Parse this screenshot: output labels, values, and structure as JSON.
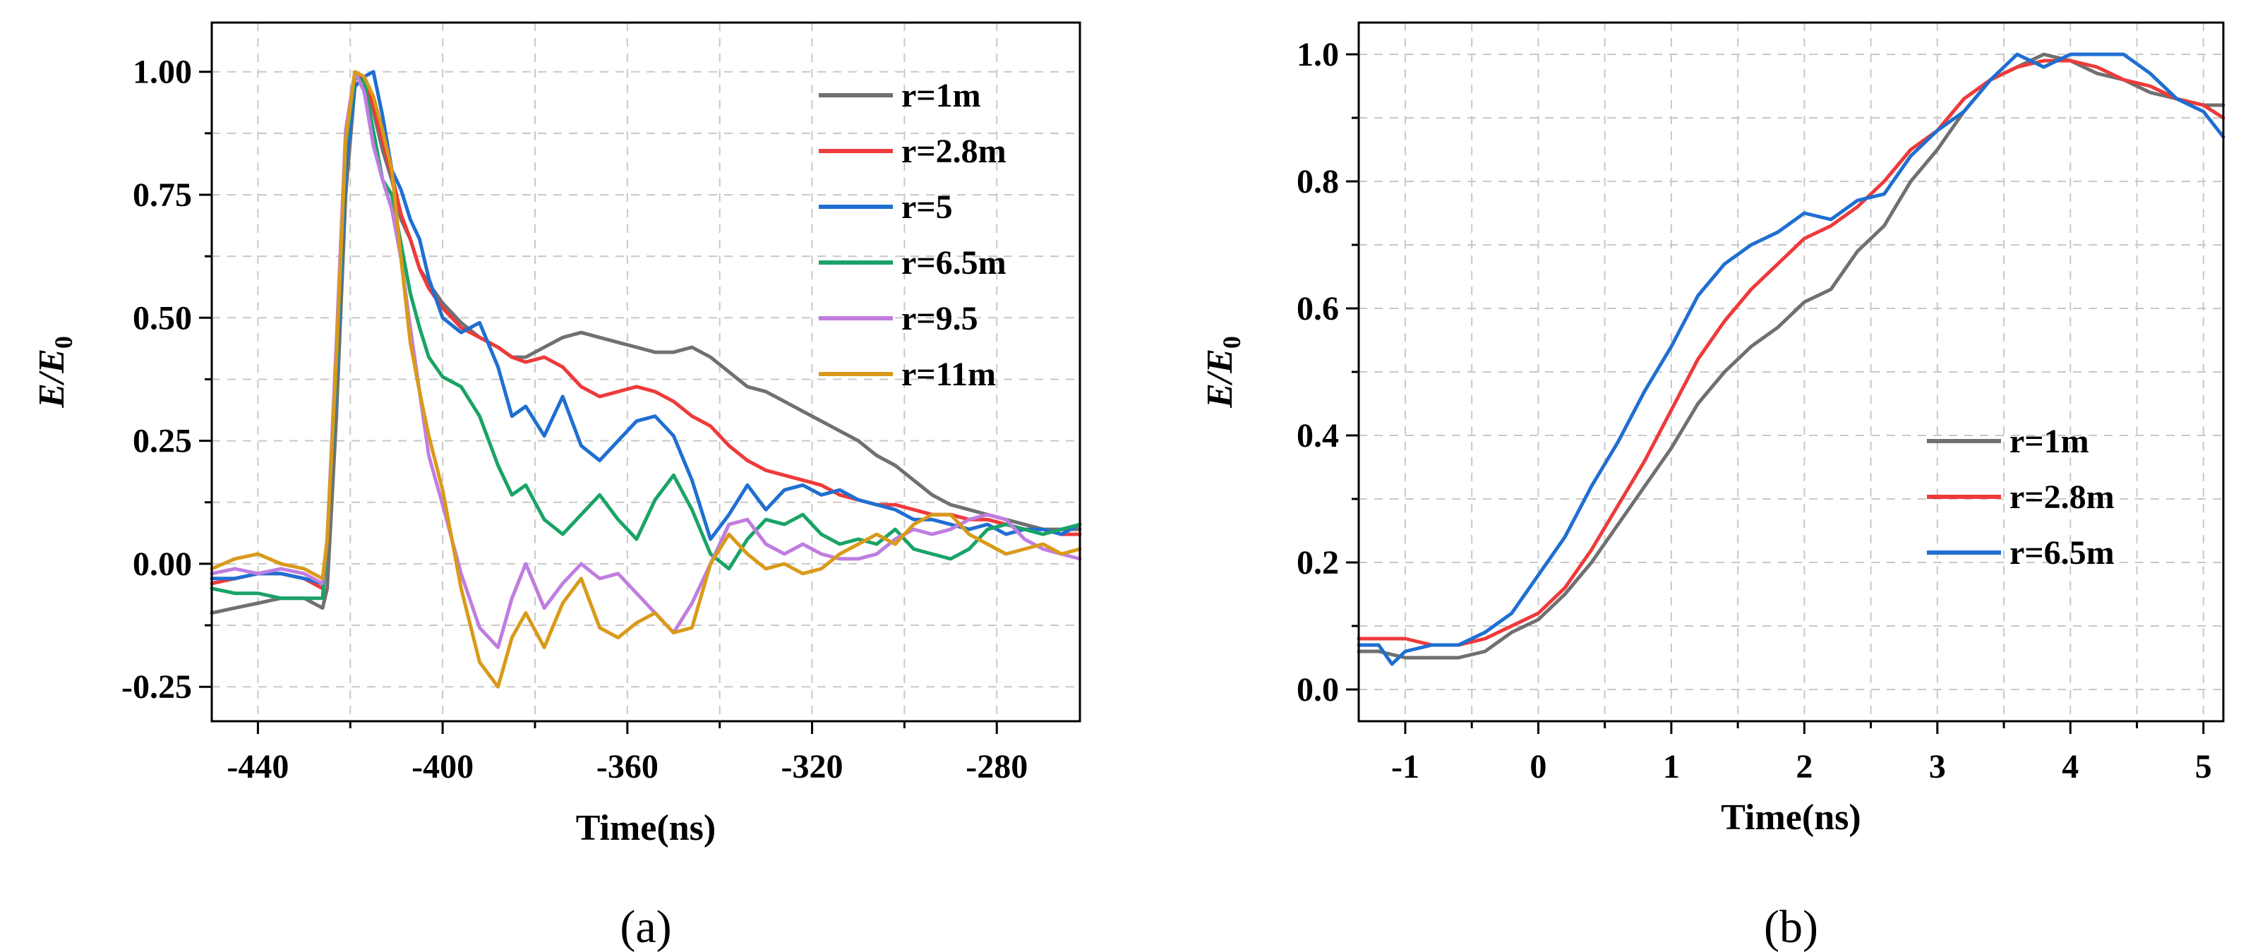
{
  "chart_data": [
    {
      "type": "line",
      "title": "",
      "panel_label": "(a)",
      "xlabel": "Time(ns)",
      "ylabel": "E/E",
      "ylabel_sub": "0",
      "xlim": [
        -450,
        -262
      ],
      "ylim": [
        -0.32,
        1.1
      ],
      "xticks": [
        -440,
        -400,
        -360,
        -320,
        -280
      ],
      "xtick_labels": [
        "-440",
        "-400",
        "-360",
        "-320",
        "-280"
      ],
      "yticks": [
        -0.25,
        0,
        0.25,
        0.5,
        0.75,
        1.0
      ],
      "ytick_labels": [
        "-0.25",
        "0.00",
        "0.25",
        "0.50",
        "0.75",
        "1.00"
      ],
      "legend_position": "top-right",
      "series": [
        {
          "name": "r=1m",
          "color": "#707070",
          "x": [
            -450,
            -445,
            -440,
            -435,
            -430,
            -426,
            -425,
            -423,
            -421,
            -419,
            -417,
            -415,
            -413,
            -411,
            -409,
            -407,
            -405,
            -403,
            -400,
            -396,
            -392,
            -388,
            -385,
            -382,
            -378,
            -374,
            -370,
            -366,
            -362,
            -358,
            -354,
            -350,
            -346,
            -342,
            -338,
            -334,
            -330,
            -326,
            -322,
            -318,
            -314,
            -310,
            -306,
            -302,
            -298,
            -294,
            -290,
            -286,
            -282,
            -278,
            -274,
            -270,
            -266,
            -262
          ],
          "y": [
            -0.1,
            -0.09,
            -0.08,
            -0.07,
            -0.07,
            -0.09,
            -0.05,
            0.3,
            0.75,
            0.97,
            0.99,
            0.92,
            0.84,
            0.78,
            0.7,
            0.66,
            0.6,
            0.57,
            0.53,
            0.49,
            0.46,
            0.44,
            0.42,
            0.42,
            0.44,
            0.46,
            0.47,
            0.46,
            0.45,
            0.44,
            0.43,
            0.43,
            0.44,
            0.42,
            0.39,
            0.36,
            0.35,
            0.33,
            0.31,
            0.29,
            0.27,
            0.25,
            0.22,
            0.2,
            0.17,
            0.14,
            0.12,
            0.11,
            0.1,
            0.09,
            0.08,
            0.07,
            0.07,
            0.07
          ]
        },
        {
          "name": "r=2.8m",
          "color": "#ee3a3a",
          "x": [
            -450,
            -445,
            -440,
            -435,
            -430,
            -426,
            -425,
            -423,
            -421,
            -419,
            -417,
            -415,
            -413,
            -411,
            -409,
            -407,
            -405,
            -403,
            -400,
            -396,
            -392,
            -388,
            -385,
            -382,
            -378,
            -374,
            -370,
            -366,
            -362,
            -358,
            -354,
            -350,
            -346,
            -342,
            -338,
            -334,
            -330,
            -326,
            -322,
            -318,
            -314,
            -310,
            -306,
            -302,
            -298,
            -294,
            -290,
            -286,
            -282,
            -278,
            -274,
            -270,
            -266,
            -262
          ],
          "y": [
            -0.04,
            -0.03,
            -0.02,
            -0.02,
            -0.03,
            -0.05,
            0.05,
            0.4,
            0.82,
            0.99,
            0.99,
            0.93,
            0.86,
            0.79,
            0.71,
            0.66,
            0.6,
            0.56,
            0.52,
            0.48,
            0.46,
            0.44,
            0.42,
            0.41,
            0.42,
            0.4,
            0.36,
            0.34,
            0.35,
            0.36,
            0.35,
            0.33,
            0.3,
            0.28,
            0.24,
            0.21,
            0.19,
            0.18,
            0.17,
            0.16,
            0.14,
            0.13,
            0.12,
            0.12,
            0.11,
            0.1,
            0.1,
            0.09,
            0.09,
            0.08,
            0.07,
            0.07,
            0.06,
            0.06
          ]
        },
        {
          "name": "r=5",
          "color": "#1f6fd1",
          "x": [
            -450,
            -445,
            -440,
            -435,
            -430,
            -426,
            -425,
            -423,
            -421,
            -419,
            -417,
            -415,
            -413,
            -411,
            -409,
            -407,
            -405,
            -403,
            -400,
            -396,
            -392,
            -388,
            -385,
            -382,
            -378,
            -374,
            -370,
            -366,
            -362,
            -358,
            -354,
            -350,
            -346,
            -342,
            -338,
            -334,
            -330,
            -326,
            -322,
            -318,
            -314,
            -310,
            -306,
            -302,
            -298,
            -294,
            -290,
            -286,
            -282,
            -278,
            -274,
            -270,
            -266,
            -262
          ],
          "y": [
            -0.03,
            -0.03,
            -0.02,
            -0.02,
            -0.03,
            -0.04,
            0.05,
            0.38,
            0.8,
            0.97,
            0.99,
            1.0,
            0.91,
            0.8,
            0.76,
            0.7,
            0.66,
            0.58,
            0.5,
            0.47,
            0.49,
            0.4,
            0.3,
            0.32,
            0.26,
            0.34,
            0.24,
            0.21,
            0.25,
            0.29,
            0.3,
            0.26,
            0.17,
            0.05,
            0.1,
            0.16,
            0.11,
            0.15,
            0.16,
            0.14,
            0.15,
            0.13,
            0.12,
            0.11,
            0.09,
            0.09,
            0.08,
            0.07,
            0.08,
            0.06,
            0.07,
            0.07,
            0.06,
            0.08
          ]
        },
        {
          "name": "r=6.5m",
          "color": "#1aa367",
          "x": [
            -450,
            -445,
            -440,
            -435,
            -430,
            -426,
            -425,
            -423,
            -421,
            -419,
            -417,
            -415,
            -413,
            -411,
            -409,
            -407,
            -405,
            -403,
            -400,
            -396,
            -392,
            -388,
            -385,
            -382,
            -378,
            -374,
            -370,
            -366,
            -362,
            -358,
            -354,
            -350,
            -346,
            -342,
            -338,
            -334,
            -330,
            -326,
            -322,
            -318,
            -314,
            -310,
            -306,
            -302,
            -298,
            -294,
            -290,
            -286,
            -282,
            -278,
            -274,
            -270,
            -266,
            -262
          ],
          "y": [
            -0.05,
            -0.06,
            -0.06,
            -0.07,
            -0.07,
            -0.07,
            0.05,
            0.4,
            0.85,
            0.99,
            0.98,
            0.88,
            0.78,
            0.75,
            0.65,
            0.55,
            0.48,
            0.42,
            0.38,
            0.36,
            0.3,
            0.2,
            0.14,
            0.16,
            0.09,
            0.06,
            0.1,
            0.14,
            0.09,
            0.05,
            0.13,
            0.18,
            0.11,
            0.02,
            -0.01,
            0.05,
            0.09,
            0.08,
            0.1,
            0.06,
            0.04,
            0.05,
            0.04,
            0.07,
            0.03,
            0.02,
            0.01,
            0.03,
            0.07,
            0.08,
            0.07,
            0.06,
            0.07,
            0.08
          ]
        },
        {
          "name": "r=9.5",
          "color": "#c07de0",
          "x": [
            -450,
            -445,
            -440,
            -435,
            -430,
            -426,
            -425,
            -423,
            -421,
            -419,
            -417,
            -415,
            -413,
            -411,
            -409,
            -407,
            -405,
            -403,
            -400,
            -396,
            -392,
            -388,
            -385,
            -382,
            -378,
            -374,
            -370,
            -366,
            -362,
            -358,
            -354,
            -350,
            -346,
            -342,
            -338,
            -334,
            -330,
            -326,
            -322,
            -318,
            -314,
            -310,
            -306,
            -302,
            -298,
            -294,
            -290,
            -286,
            -282,
            -278,
            -274,
            -270,
            -266,
            -262
          ],
          "y": [
            -0.02,
            -0.01,
            -0.02,
            -0.01,
            -0.02,
            -0.04,
            0.05,
            0.45,
            0.88,
            1.0,
            0.96,
            0.85,
            0.78,
            0.72,
            0.62,
            0.48,
            0.35,
            0.22,
            0.12,
            -0.02,
            -0.13,
            -0.17,
            -0.07,
            0.0,
            -0.09,
            -0.04,
            0.0,
            -0.03,
            -0.02,
            -0.06,
            -0.1,
            -0.14,
            -0.08,
            0.0,
            0.08,
            0.09,
            0.04,
            0.02,
            0.04,
            0.02,
            0.01,
            0.01,
            0.02,
            0.05,
            0.07,
            0.06,
            0.07,
            0.09,
            0.1,
            0.09,
            0.05,
            0.03,
            0.02,
            0.01
          ]
        },
        {
          "name": "r=11m",
          "color": "#d99a1a",
          "x": [
            -450,
            -445,
            -440,
            -435,
            -430,
            -426,
            -425,
            -423,
            -421,
            -419,
            -417,
            -415,
            -413,
            -411,
            -409,
            -407,
            -405,
            -403,
            -400,
            -396,
            -392,
            -388,
            -385,
            -382,
            -378,
            -374,
            -370,
            -366,
            -362,
            -358,
            -354,
            -350,
            -346,
            -342,
            -338,
            -334,
            -330,
            -326,
            -322,
            -318,
            -314,
            -310,
            -306,
            -302,
            -298,
            -294,
            -290,
            -286,
            -282,
            -278,
            -274,
            -270,
            -266,
            -262
          ],
          "y": [
            -0.01,
            0.01,
            0.02,
            0.0,
            -0.01,
            -0.03,
            0.05,
            0.42,
            0.86,
            1.0,
            0.99,
            0.95,
            0.88,
            0.8,
            0.62,
            0.45,
            0.35,
            0.26,
            0.15,
            -0.05,
            -0.2,
            -0.25,
            -0.15,
            -0.1,
            -0.17,
            -0.08,
            -0.03,
            -0.13,
            -0.15,
            -0.12,
            -0.1,
            -0.14,
            -0.13,
            0.0,
            0.06,
            0.02,
            -0.01,
            0.0,
            -0.02,
            -0.01,
            0.02,
            0.04,
            0.06,
            0.04,
            0.08,
            0.1,
            0.1,
            0.06,
            0.04,
            0.02,
            0.03,
            0.04,
            0.02,
            0.03
          ]
        }
      ]
    },
    {
      "type": "line",
      "title": "",
      "panel_label": "(b)",
      "xlabel": "Time(ns)",
      "ylabel": "E/E",
      "ylabel_sub": "0",
      "xlim": [
        -1.35,
        5.15
      ],
      "ylim": [
        -0.05,
        1.05
      ],
      "xticks": [
        -1,
        0,
        1,
        2,
        3,
        4,
        5
      ],
      "xtick_labels": [
        "-1",
        "0",
        "1",
        "2",
        "3",
        "4",
        "5"
      ],
      "yticks": [
        0,
        0.2,
        0.4,
        0.6,
        0.8,
        1.0
      ],
      "ytick_labels": [
        "0.0",
        "0.2",
        "0.4",
        "0.6",
        "0.8",
        "1.0"
      ],
      "legend_position": "lower-right",
      "series": [
        {
          "name": "r=1m",
          "color": "#707070",
          "x": [
            -1.35,
            -1.2,
            -1.0,
            -0.8,
            -0.6,
            -0.4,
            -0.2,
            0.0,
            0.2,
            0.4,
            0.6,
            0.8,
            1.0,
            1.2,
            1.4,
            1.6,
            1.8,
            2.0,
            2.2,
            2.4,
            2.6,
            2.8,
            3.0,
            3.2,
            3.4,
            3.6,
            3.8,
            4.0,
            4.2,
            4.4,
            4.6,
            4.8,
            5.0,
            5.15
          ],
          "y": [
            0.06,
            0.06,
            0.05,
            0.05,
            0.05,
            0.06,
            0.09,
            0.11,
            0.15,
            0.2,
            0.26,
            0.32,
            0.38,
            0.45,
            0.5,
            0.54,
            0.57,
            0.61,
            0.63,
            0.69,
            0.73,
            0.8,
            0.85,
            0.91,
            0.96,
            0.98,
            1.0,
            0.99,
            0.97,
            0.96,
            0.94,
            0.93,
            0.92,
            0.92
          ]
        },
        {
          "name": "r=2.8m",
          "color": "#ee3a3a",
          "x": [
            -1.35,
            -1.2,
            -1.0,
            -0.8,
            -0.6,
            -0.4,
            -0.2,
            0.0,
            0.2,
            0.4,
            0.6,
            0.8,
            1.0,
            1.2,
            1.4,
            1.6,
            1.8,
            2.0,
            2.2,
            2.4,
            2.6,
            2.8,
            3.0,
            3.2,
            3.4,
            3.6,
            3.8,
            4.0,
            4.2,
            4.4,
            4.6,
            4.8,
            5.0,
            5.15
          ],
          "y": [
            0.08,
            0.08,
            0.08,
            0.07,
            0.07,
            0.08,
            0.1,
            0.12,
            0.16,
            0.22,
            0.29,
            0.36,
            0.44,
            0.52,
            0.58,
            0.63,
            0.67,
            0.71,
            0.73,
            0.76,
            0.8,
            0.85,
            0.88,
            0.93,
            0.96,
            0.98,
            0.99,
            0.99,
            0.98,
            0.96,
            0.95,
            0.93,
            0.92,
            0.9
          ]
        },
        {
          "name": "r=6.5m",
          "color": "#1f6fd1",
          "x": [
            -1.35,
            -1.2,
            -1.1,
            -1.0,
            -0.8,
            -0.6,
            -0.4,
            -0.2,
            0.0,
            0.2,
            0.4,
            0.6,
            0.8,
            1.0,
            1.2,
            1.4,
            1.6,
            1.8,
            2.0,
            2.2,
            2.4,
            2.6,
            2.8,
            3.0,
            3.2,
            3.4,
            3.6,
            3.8,
            4.0,
            4.2,
            4.4,
            4.6,
            4.8,
            5.0,
            5.15
          ],
          "y": [
            0.07,
            0.07,
            0.04,
            0.06,
            0.07,
            0.07,
            0.09,
            0.12,
            0.18,
            0.24,
            0.32,
            0.39,
            0.47,
            0.54,
            0.62,
            0.67,
            0.7,
            0.72,
            0.75,
            0.74,
            0.77,
            0.78,
            0.84,
            0.88,
            0.91,
            0.96,
            1.0,
            0.98,
            1.0,
            1.0,
            1.0,
            0.97,
            0.93,
            0.91,
            0.87
          ]
        }
      ]
    }
  ]
}
